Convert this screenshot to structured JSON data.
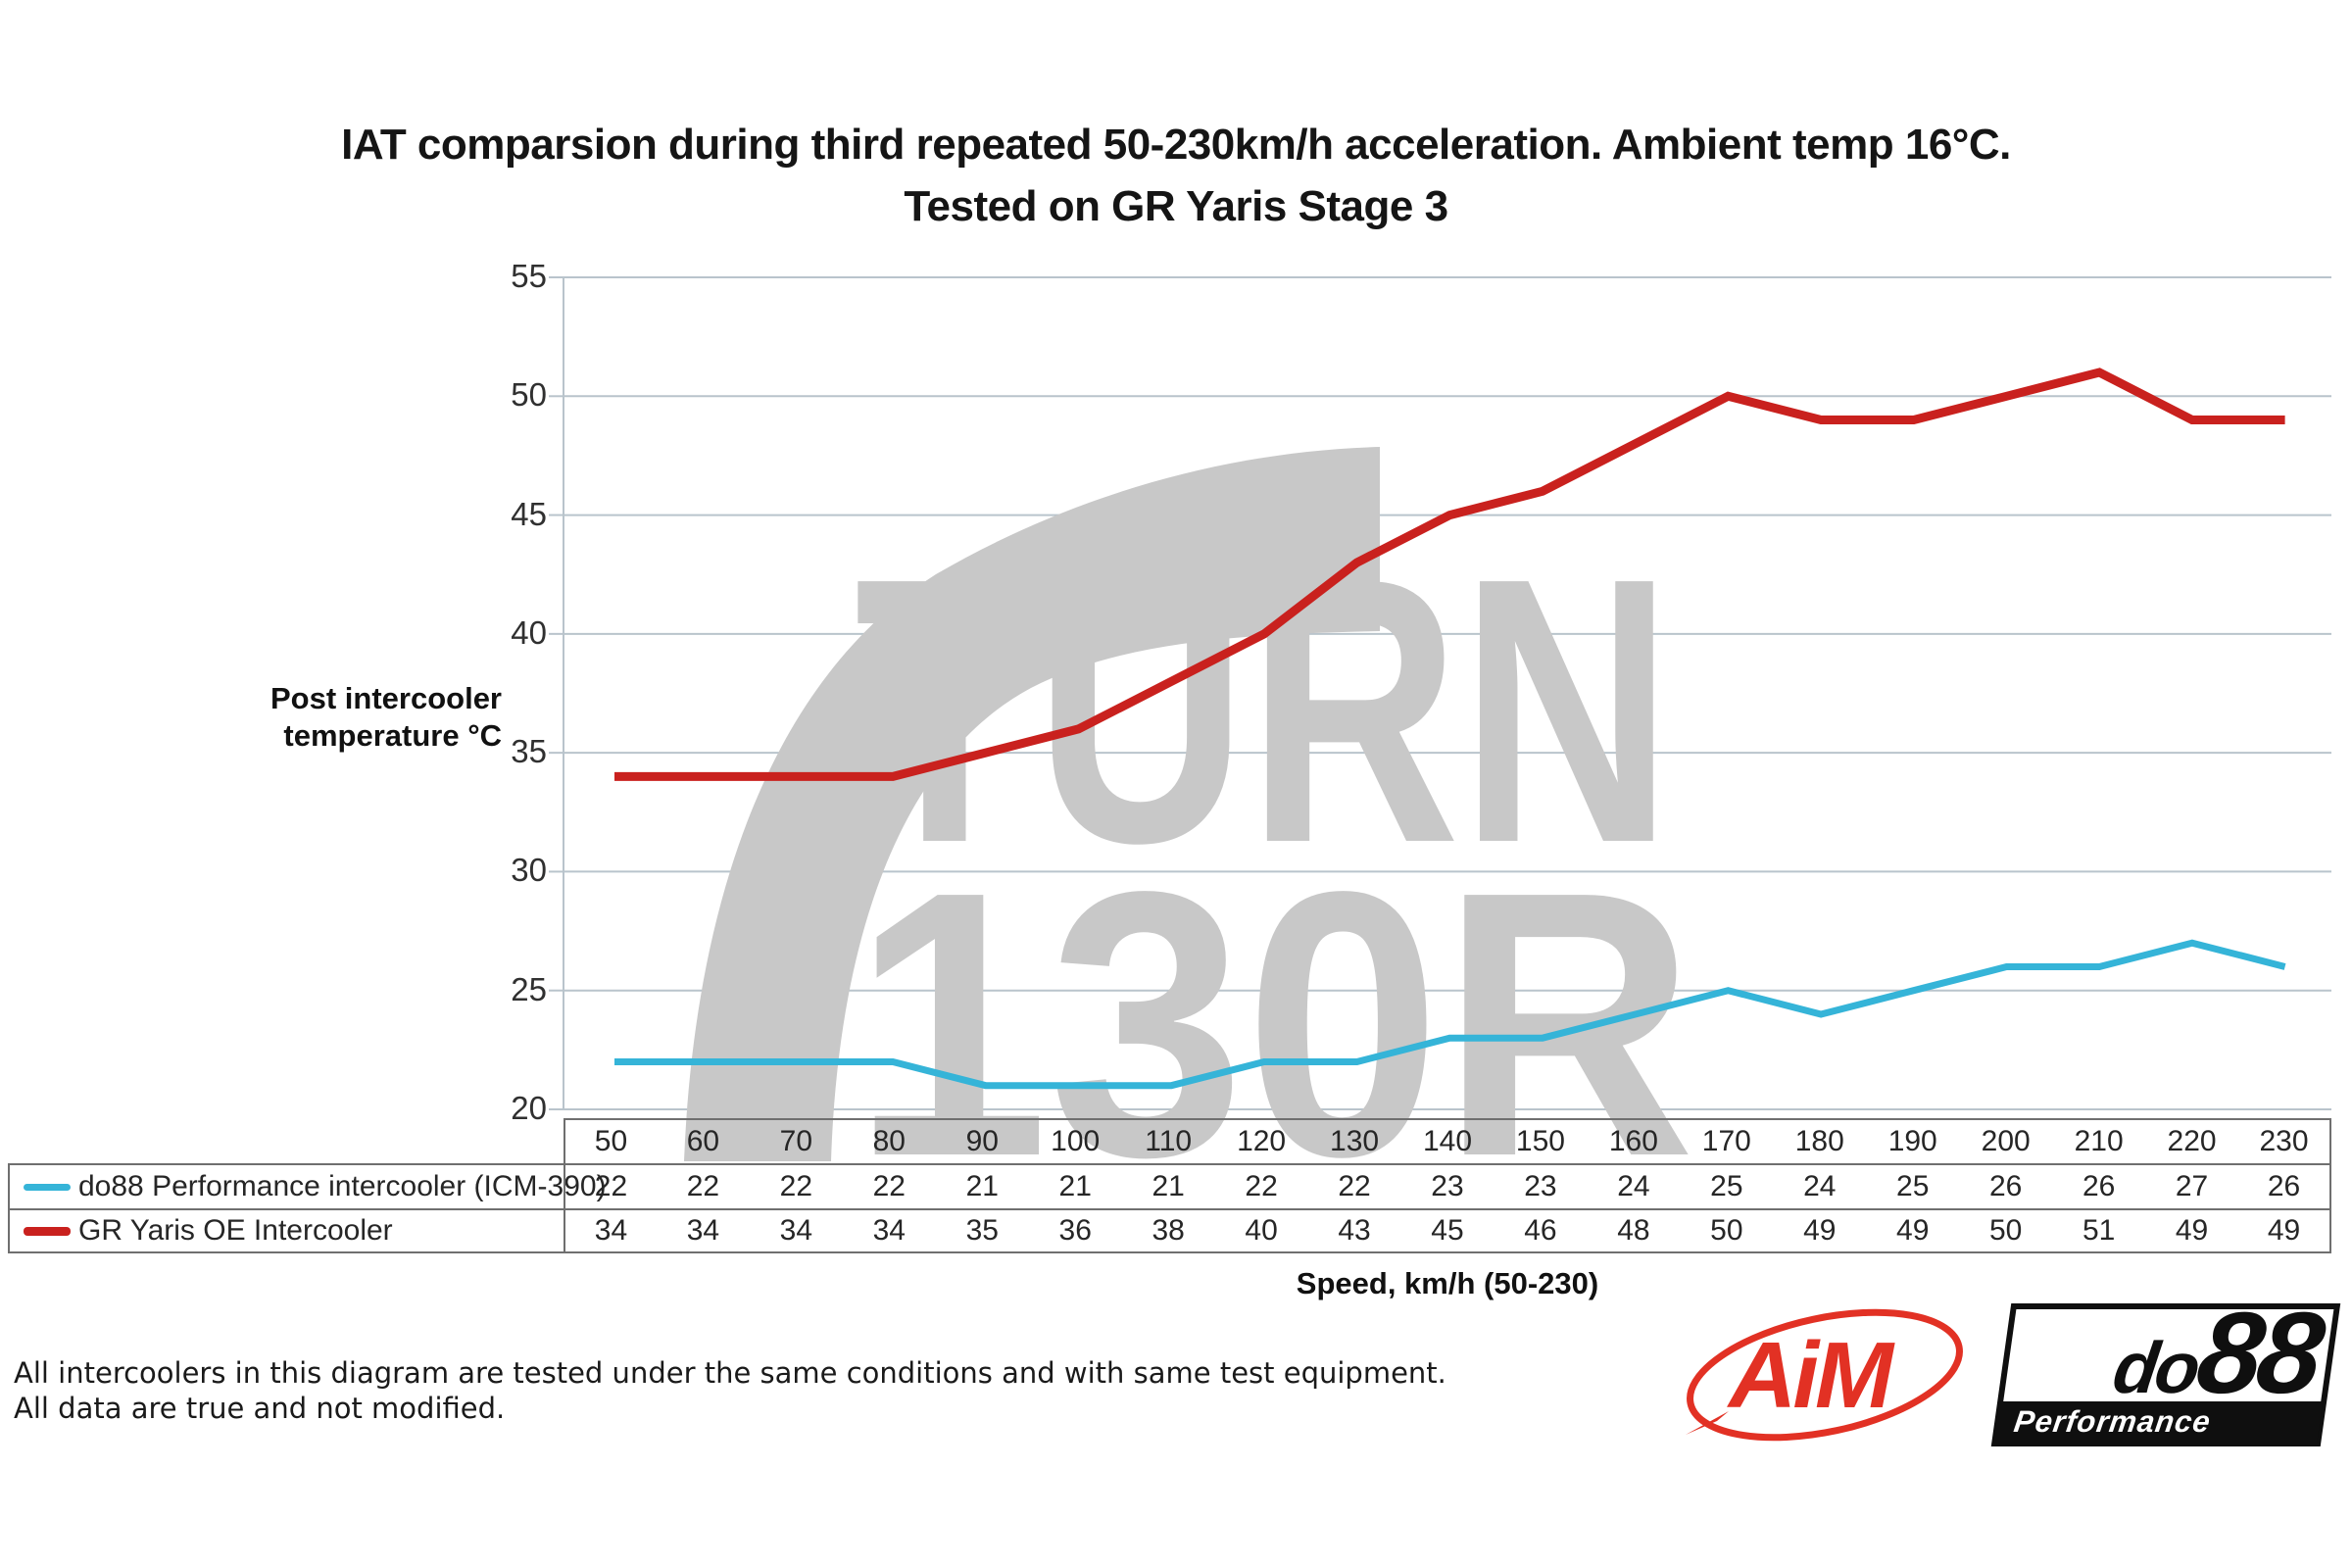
{
  "title": {
    "line1": "IAT comparsion during third repeated 50-230km/h acceleration. Ambient temp 16°C.",
    "line2": "Tested on GR Yaris Stage 3"
  },
  "watermark": {
    "line1": "TURN",
    "line2": "130R",
    "color": "#c8c8c8"
  },
  "chart_data": {
    "type": "line",
    "title": "IAT comparsion during third repeated 50-230km/h acceleration. Ambient temp 16°C. Tested on GR Yaris Stage 3",
    "xlabel": "Speed, km/h (50-230)",
    "ylabel": "Post intercooler temperature °C",
    "ylabel_lines": [
      "Post intercooler",
      "temperature °C"
    ],
    "ylim": [
      20,
      55
    ],
    "yticks": [
      55,
      50,
      45,
      40,
      35,
      30,
      25,
      20
    ],
    "grid": "horizontal",
    "legend_position": "left-table",
    "categories": [
      50,
      60,
      70,
      80,
      90,
      100,
      110,
      120,
      130,
      140,
      150,
      160,
      170,
      180,
      190,
      200,
      210,
      220,
      230
    ],
    "series": [
      {
        "name": "do88 Performance intercooler (ICM-390)",
        "color": "#35b4d8",
        "stroke_width": 7,
        "values": [
          22,
          22,
          22,
          22,
          21,
          21,
          21,
          22,
          22,
          23,
          23,
          24,
          25,
          24,
          25,
          26,
          26,
          27,
          26
        ]
      },
      {
        "name": "GR Yaris OE Intercooler",
        "color": "#c9211e",
        "stroke_width": 9,
        "values": [
          34,
          34,
          34,
          34,
          35,
          36,
          38,
          40,
          43,
          45,
          46,
          48,
          50,
          49,
          49,
          50,
          51,
          49,
          49
        ]
      }
    ]
  },
  "footer": {
    "line1": "All intercoolers in this diagram are tested under the same conditions and with same test equipment.",
    "line2": "All data are true and not modified."
  },
  "logos": {
    "aim": {
      "text": "AiM",
      "color": "#e23124"
    },
    "do88": {
      "part1": "do",
      "part2": "88",
      "sub": "Performance"
    }
  },
  "colors": {
    "gridline": "#b9c4cc",
    "table_border": "#6f6f6f",
    "watermark": "#c8c8c8"
  }
}
